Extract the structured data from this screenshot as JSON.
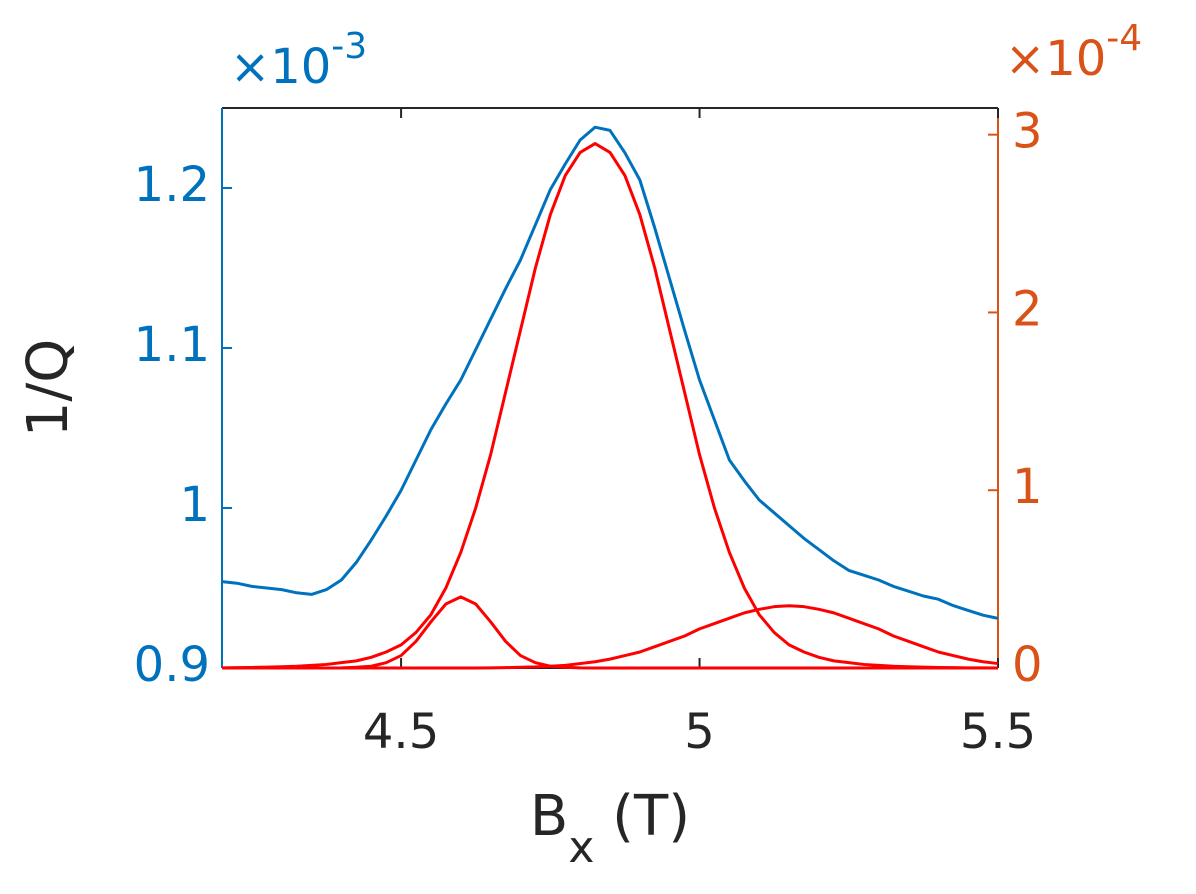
{
  "chart_data": {
    "type": "line",
    "ylabel": "1/Q",
    "xlabel": [
      "B",
      "x",
      " (T)"
    ],
    "y_exponent": {
      "base": "×10",
      "power": "-3"
    },
    "y2_exponent": {
      "base": "×10",
      "power": "-4"
    },
    "xlim": [
      4.2,
      5.5
    ],
    "xticks": [
      4.5,
      5,
      5.5
    ],
    "ylim": [
      0.9,
      1.25
    ],
    "yticks": [
      0.9,
      1,
      1.1,
      1.2
    ],
    "y2lim": [
      0,
      3.15
    ],
    "y2ticks": [
      0,
      1,
      2,
      3
    ],
    "y_color": "#0072BD",
    "y2_color": "#D95319",
    "x": [
      4.2,
      4.225,
      4.25,
      4.275,
      4.3,
      4.325,
      4.35,
      4.375,
      4.4,
      4.425,
      4.45,
      4.475,
      4.5,
      4.525,
      4.55,
      4.575,
      4.6,
      4.625,
      4.65,
      4.675,
      4.7,
      4.725,
      4.75,
      4.775,
      4.8,
      4.825,
      4.85,
      4.875,
      4.9,
      4.925,
      4.95,
      4.975,
      5.0,
      5.025,
      5.05,
      5.075,
      5.1,
      5.125,
      5.15,
      5.175,
      5.2,
      5.225,
      5.25,
      5.275,
      5.3,
      5.325,
      5.35,
      5.375,
      5.4,
      5.425,
      5.45,
      5.475,
      5.5
    ],
    "series": [
      {
        "color": "#0072BD",
        "axis": "y",
        "values": [
          0.954,
          0.953,
          0.951,
          0.95,
          0.949,
          0.947,
          0.946,
          0.949,
          0.955,
          0.966,
          0.98,
          0.995,
          1.011,
          1.03,
          1.049,
          1.065,
          1.08,
          1.099,
          1.118,
          1.137,
          1.155,
          1.177,
          1.199,
          1.215,
          1.23,
          1.238,
          1.236,
          1.222,
          1.205,
          1.175,
          1.143,
          1.111,
          1.08,
          1.055,
          1.03,
          1.017,
          1.005,
          0.997,
          0.989,
          0.981,
          0.974,
          0.967,
          0.961,
          0.958,
          0.955,
          0.951,
          0.948,
          0.945,
          0.943,
          0.939,
          0.936,
          0.933,
          0.931
        ]
      },
      {
        "color": "#FF0000",
        "axis": "y2",
        "values": [
          0.001,
          0.002,
          0.003,
          0.005,
          0.007,
          0.01,
          0.015,
          0.02,
          0.03,
          0.04,
          0.06,
          0.09,
          0.13,
          0.2,
          0.3,
          0.45,
          0.65,
          0.9,
          1.2,
          1.55,
          1.9,
          2.25,
          2.55,
          2.77,
          2.9,
          2.95,
          2.9,
          2.77,
          2.55,
          2.25,
          1.9,
          1.55,
          1.2,
          0.9,
          0.65,
          0.45,
          0.3,
          0.2,
          0.13,
          0.09,
          0.06,
          0.04,
          0.03,
          0.02,
          0.015,
          0.01,
          0.007,
          0.005,
          0.003,
          0.002,
          0.001,
          0.001,
          0
        ]
      },
      {
        "color": "#FF0000",
        "axis": "y2",
        "values": [
          0,
          0,
          0,
          0,
          0,
          0,
          0,
          0,
          0.001,
          0.004,
          0.01,
          0.03,
          0.07,
          0.15,
          0.26,
          0.36,
          0.4,
          0.36,
          0.26,
          0.15,
          0.07,
          0.03,
          0.01,
          0.004,
          0.001,
          0,
          0,
          0,
          0,
          0,
          0,
          0,
          0,
          0,
          0,
          0,
          0,
          0,
          0,
          0,
          0,
          0,
          0,
          0,
          0,
          0,
          0,
          0,
          0,
          0,
          0,
          0,
          0
        ]
      },
      {
        "color": "#FF0000",
        "axis": "y2",
        "values": [
          0,
          0,
          0,
          0,
          0,
          0,
          0,
          0,
          0,
          0,
          0,
          0,
          0,
          0,
          0,
          0,
          0,
          0,
          0.001,
          0.002,
          0.004,
          0.006,
          0.01,
          0.015,
          0.025,
          0.035,
          0.05,
          0.07,
          0.09,
          0.12,
          0.15,
          0.18,
          0.22,
          0.25,
          0.28,
          0.31,
          0.33,
          0.345,
          0.35,
          0.345,
          0.33,
          0.31,
          0.28,
          0.25,
          0.22,
          0.18,
          0.15,
          0.12,
          0.09,
          0.07,
          0.05,
          0.035,
          0.025
        ]
      }
    ]
  }
}
